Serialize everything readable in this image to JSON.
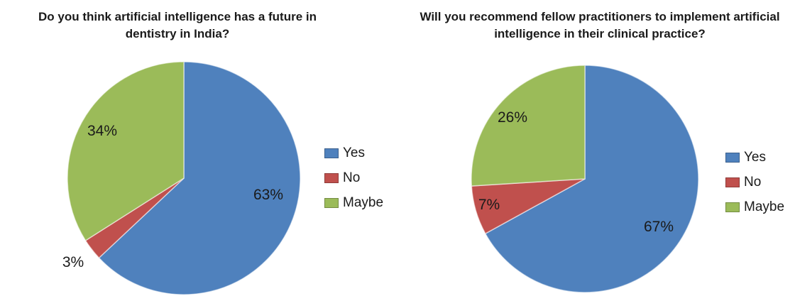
{
  "chart_data": [
    {
      "type": "pie",
      "title": "Do you think artificial intelligence has a future in dentistry in India?",
      "categories": [
        "Yes",
        "No",
        "Maybe"
      ],
      "values": [
        63,
        3,
        34
      ],
      "labels": [
        "63%",
        "3%",
        "34%"
      ],
      "colors": [
        "#4f81bd",
        "#c0504d",
        "#9bbb59"
      ],
      "legend_position": "right"
    },
    {
      "type": "pie",
      "title": "Will you recommend fellow practitioners to implement artificial intelligence in their clinical practice?",
      "categories": [
        "Yes",
        "No",
        "Maybe"
      ],
      "values": [
        67,
        7,
        26
      ],
      "labels": [
        "67%",
        "7%",
        "26%"
      ],
      "colors": [
        "#4f81bd",
        "#c0504d",
        "#9bbb59"
      ],
      "legend_position": "right"
    }
  ]
}
